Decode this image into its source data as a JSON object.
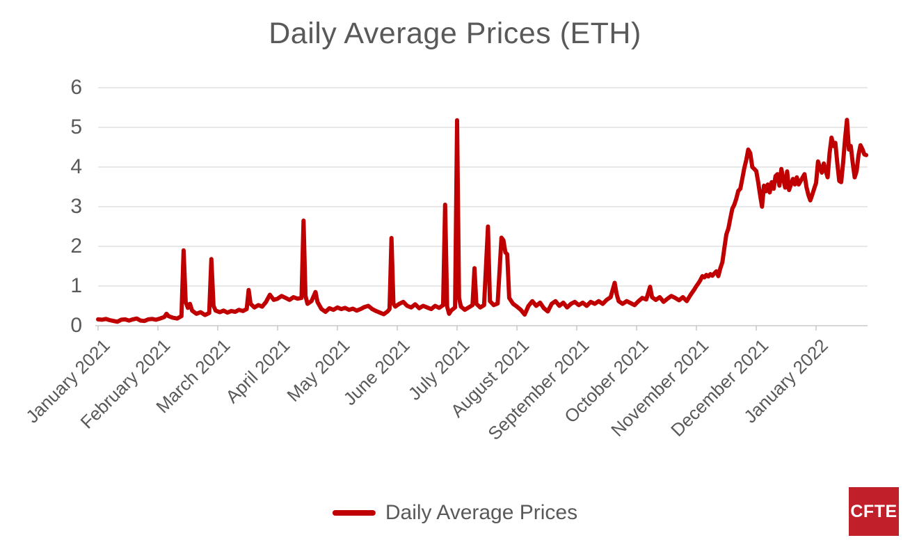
{
  "page": {
    "background": "#ffffff"
  },
  "colors": {
    "line": "#c00000",
    "text": "#595959",
    "gridline": "#d9d9d9",
    "axis_line": "#bfbfbf",
    "logo_background": "#c1202b",
    "logo_text": "#ffffff"
  },
  "logo": {
    "text": "CFTE"
  },
  "legend": {
    "label": "Daily Average Prices"
  },
  "chart_data": {
    "type": "line",
    "title": "Daily Average Prices (ETH)",
    "xlabel": "",
    "ylabel": "",
    "ylim": [
      0,
      6
    ],
    "yticks": [
      0,
      1,
      2,
      3,
      4,
      5,
      6
    ],
    "grid": "horizontal",
    "legend_position": "bottom-center",
    "x_axis_unit": "month",
    "x_tick_labels": [
      "January 2021",
      "February 2021",
      "March 2021",
      "April 2021",
      "May 2021",
      "June 2021",
      "July 2021",
      "August 2021",
      "September 2021",
      "October 2021",
      "November 2021",
      "December 2021",
      "January 2022"
    ],
    "series": [
      {
        "name": "Daily Average Prices",
        "color": "#c00000",
        "points": [
          [
            "2021-01-01",
            0.16
          ],
          [
            "2021-01-03",
            0.15
          ],
          [
            "2021-01-05",
            0.17
          ],
          [
            "2021-01-07",
            0.14
          ],
          [
            "2021-01-09",
            0.12
          ],
          [
            "2021-01-11",
            0.1
          ],
          [
            "2021-01-13",
            0.15
          ],
          [
            "2021-01-15",
            0.16
          ],
          [
            "2021-01-17",
            0.13
          ],
          [
            "2021-01-19",
            0.16
          ],
          [
            "2021-01-21",
            0.18
          ],
          [
            "2021-01-23",
            0.13
          ],
          [
            "2021-01-25",
            0.12
          ],
          [
            "2021-01-27",
            0.16
          ],
          [
            "2021-01-29",
            0.17
          ],
          [
            "2021-01-31",
            0.15
          ],
          [
            "2021-02-02",
            0.18
          ],
          [
            "2021-02-04",
            0.22
          ],
          [
            "2021-02-05",
            0.3
          ],
          [
            "2021-02-06",
            0.24
          ],
          [
            "2021-02-08",
            0.2
          ],
          [
            "2021-02-10",
            0.18
          ],
          [
            "2021-02-12",
            0.24
          ],
          [
            "2021-02-13",
            1.9
          ],
          [
            "2021-02-14",
            0.6
          ],
          [
            "2021-02-15",
            0.45
          ],
          [
            "2021-02-16",
            0.55
          ],
          [
            "2021-02-17",
            0.38
          ],
          [
            "2021-02-19",
            0.3
          ],
          [
            "2021-02-21",
            0.34
          ],
          [
            "2021-02-23",
            0.27
          ],
          [
            "2021-02-25",
            0.32
          ],
          [
            "2021-02-26",
            1.68
          ],
          [
            "2021-02-27",
            0.5
          ],
          [
            "2021-02-28",
            0.38
          ],
          [
            "2021-03-02",
            0.34
          ],
          [
            "2021-03-04",
            0.38
          ],
          [
            "2021-03-06",
            0.33
          ],
          [
            "2021-03-08",
            0.37
          ],
          [
            "2021-03-10",
            0.35
          ],
          [
            "2021-03-12",
            0.4
          ],
          [
            "2021-03-14",
            0.37
          ],
          [
            "2021-03-16",
            0.42
          ],
          [
            "2021-03-17",
            0.9
          ],
          [
            "2021-03-18",
            0.55
          ],
          [
            "2021-03-20",
            0.46
          ],
          [
            "2021-03-22",
            0.52
          ],
          [
            "2021-03-24",
            0.48
          ],
          [
            "2021-03-26",
            0.6
          ],
          [
            "2021-03-28",
            0.78
          ],
          [
            "2021-03-30",
            0.65
          ],
          [
            "2021-04-01",
            0.68
          ],
          [
            "2021-04-03",
            0.75
          ],
          [
            "2021-04-05",
            0.7
          ],
          [
            "2021-04-07",
            0.65
          ],
          [
            "2021-04-09",
            0.72
          ],
          [
            "2021-04-11",
            0.68
          ],
          [
            "2021-04-13",
            0.7
          ],
          [
            "2021-04-14",
            2.65
          ],
          [
            "2021-04-15",
            0.75
          ],
          [
            "2021-04-16",
            0.55
          ],
          [
            "2021-04-18",
            0.62
          ],
          [
            "2021-04-20",
            0.85
          ],
          [
            "2021-04-21",
            0.6
          ],
          [
            "2021-04-23",
            0.42
          ],
          [
            "2021-04-25",
            0.35
          ],
          [
            "2021-04-27",
            0.44
          ],
          [
            "2021-04-29",
            0.4
          ],
          [
            "2021-05-01",
            0.46
          ],
          [
            "2021-05-03",
            0.42
          ],
          [
            "2021-05-05",
            0.45
          ],
          [
            "2021-05-07",
            0.4
          ],
          [
            "2021-05-09",
            0.43
          ],
          [
            "2021-05-11",
            0.38
          ],
          [
            "2021-05-13",
            0.42
          ],
          [
            "2021-05-15",
            0.47
          ],
          [
            "2021-05-17",
            0.5
          ],
          [
            "2021-05-19",
            0.42
          ],
          [
            "2021-05-21",
            0.37
          ],
          [
            "2021-05-23",
            0.33
          ],
          [
            "2021-05-25",
            0.29
          ],
          [
            "2021-05-27",
            0.36
          ],
          [
            "2021-05-28",
            0.42
          ],
          [
            "2021-05-29",
            2.21
          ],
          [
            "2021-05-30",
            0.55
          ],
          [
            "2021-05-31",
            0.48
          ],
          [
            "2021-06-02",
            0.55
          ],
          [
            "2021-06-04",
            0.6
          ],
          [
            "2021-06-06",
            0.5
          ],
          [
            "2021-06-08",
            0.46
          ],
          [
            "2021-06-10",
            0.54
          ],
          [
            "2021-06-12",
            0.44
          ],
          [
            "2021-06-14",
            0.5
          ],
          [
            "2021-06-16",
            0.46
          ],
          [
            "2021-06-18",
            0.42
          ],
          [
            "2021-06-20",
            0.5
          ],
          [
            "2021-06-22",
            0.45
          ],
          [
            "2021-06-24",
            0.52
          ],
          [
            "2021-06-25",
            3.05
          ],
          [
            "2021-06-26",
            0.48
          ],
          [
            "2021-06-27",
            0.3
          ],
          [
            "2021-06-28",
            0.38
          ],
          [
            "2021-06-30",
            0.46
          ],
          [
            "2021-07-01",
            5.18
          ],
          [
            "2021-07-02",
            0.7
          ],
          [
            "2021-07-03",
            0.48
          ],
          [
            "2021-07-05",
            0.4
          ],
          [
            "2021-07-07",
            0.46
          ],
          [
            "2021-07-09",
            0.52
          ],
          [
            "2021-07-10",
            1.45
          ],
          [
            "2021-07-11",
            0.55
          ],
          [
            "2021-07-13",
            0.46
          ],
          [
            "2021-07-15",
            0.52
          ],
          [
            "2021-07-17",
            2.5
          ],
          [
            "2021-07-18",
            0.62
          ],
          [
            "2021-07-20",
            0.52
          ],
          [
            "2021-07-22",
            0.56
          ],
          [
            "2021-07-24",
            2.22
          ],
          [
            "2021-07-25",
            2.15
          ],
          [
            "2021-07-26",
            1.85
          ],
          [
            "2021-07-27",
            1.8
          ],
          [
            "2021-07-28",
            0.7
          ],
          [
            "2021-07-30",
            0.55
          ],
          [
            "2021-08-01",
            0.48
          ],
          [
            "2021-08-03",
            0.4
          ],
          [
            "2021-08-05",
            0.28
          ],
          [
            "2021-08-07",
            0.5
          ],
          [
            "2021-08-09",
            0.62
          ],
          [
            "2021-08-11",
            0.5
          ],
          [
            "2021-08-13",
            0.58
          ],
          [
            "2021-08-15",
            0.44
          ],
          [
            "2021-08-17",
            0.36
          ],
          [
            "2021-08-19",
            0.55
          ],
          [
            "2021-08-21",
            0.62
          ],
          [
            "2021-08-23",
            0.5
          ],
          [
            "2021-08-25",
            0.58
          ],
          [
            "2021-08-27",
            0.46
          ],
          [
            "2021-08-29",
            0.55
          ],
          [
            "2021-08-31",
            0.6
          ],
          [
            "2021-09-02",
            0.52
          ],
          [
            "2021-09-04",
            0.58
          ],
          [
            "2021-09-06",
            0.5
          ],
          [
            "2021-09-08",
            0.6
          ],
          [
            "2021-09-10",
            0.55
          ],
          [
            "2021-09-12",
            0.62
          ],
          [
            "2021-09-14",
            0.55
          ],
          [
            "2021-09-16",
            0.65
          ],
          [
            "2021-09-18",
            0.72
          ],
          [
            "2021-09-20",
            1.08
          ],
          [
            "2021-09-21",
            0.8
          ],
          [
            "2021-09-22",
            0.62
          ],
          [
            "2021-09-24",
            0.55
          ],
          [
            "2021-09-26",
            0.62
          ],
          [
            "2021-09-28",
            0.57
          ],
          [
            "2021-09-30",
            0.52
          ],
          [
            "2021-10-02",
            0.62
          ],
          [
            "2021-10-04",
            0.7
          ],
          [
            "2021-10-06",
            0.66
          ],
          [
            "2021-10-08",
            0.98
          ],
          [
            "2021-10-09",
            0.72
          ],
          [
            "2021-10-11",
            0.65
          ],
          [
            "2021-10-13",
            0.72
          ],
          [
            "2021-10-15",
            0.6
          ],
          [
            "2021-10-17",
            0.68
          ],
          [
            "2021-10-19",
            0.75
          ],
          [
            "2021-10-21",
            0.7
          ],
          [
            "2021-10-23",
            0.64
          ],
          [
            "2021-10-25",
            0.72
          ],
          [
            "2021-10-27",
            0.62
          ],
          [
            "2021-10-28",
            0.7
          ],
          [
            "2021-10-29",
            0.78
          ],
          [
            "2021-10-31",
            0.92
          ],
          [
            "2021-11-01",
            1.0
          ],
          [
            "2021-11-02",
            1.07
          ],
          [
            "2021-11-03",
            1.15
          ],
          [
            "2021-11-04",
            1.25
          ],
          [
            "2021-11-05",
            1.22
          ],
          [
            "2021-11-06",
            1.28
          ],
          [
            "2021-11-07",
            1.24
          ],
          [
            "2021-11-08",
            1.3
          ],
          [
            "2021-11-09",
            1.26
          ],
          [
            "2021-11-10",
            1.32
          ],
          [
            "2021-11-11",
            1.37
          ],
          [
            "2021-11-12",
            1.25
          ],
          [
            "2021-11-13",
            1.45
          ],
          [
            "2021-11-14",
            1.6
          ],
          [
            "2021-11-15",
            1.95
          ],
          [
            "2021-11-16",
            2.3
          ],
          [
            "2021-11-17",
            2.45
          ],
          [
            "2021-11-18",
            2.7
          ],
          [
            "2021-11-19",
            2.95
          ],
          [
            "2021-11-20",
            3.05
          ],
          [
            "2021-11-21",
            3.2
          ],
          [
            "2021-11-22",
            3.4
          ],
          [
            "2021-11-23",
            3.45
          ],
          [
            "2021-11-24",
            3.7
          ],
          [
            "2021-11-25",
            3.97
          ],
          [
            "2021-11-26",
            4.18
          ],
          [
            "2021-11-27",
            4.44
          ],
          [
            "2021-11-28",
            4.35
          ],
          [
            "2021-11-29",
            4.0
          ],
          [
            "2021-11-30",
            3.95
          ],
          [
            "2021-12-01",
            3.9
          ],
          [
            "2021-12-02",
            3.62
          ],
          [
            "2021-12-03",
            3.3
          ],
          [
            "2021-12-04",
            3.0
          ],
          [
            "2021-12-05",
            3.53
          ],
          [
            "2021-12-06",
            3.39
          ],
          [
            "2021-12-07",
            3.56
          ],
          [
            "2021-12-08",
            3.36
          ],
          [
            "2021-12-09",
            3.62
          ],
          [
            "2021-12-10",
            3.45
          ],
          [
            "2021-12-11",
            3.77
          ],
          [
            "2021-12-12",
            3.82
          ],
          [
            "2021-12-13",
            3.53
          ],
          [
            "2021-12-14",
            3.95
          ],
          [
            "2021-12-15",
            3.7
          ],
          [
            "2021-12-16",
            3.48
          ],
          [
            "2021-12-17",
            3.89
          ],
          [
            "2021-12-18",
            3.42
          ],
          [
            "2021-12-19",
            3.56
          ],
          [
            "2021-12-20",
            3.7
          ],
          [
            "2021-12-21",
            3.56
          ],
          [
            "2021-12-22",
            3.74
          ],
          [
            "2021-12-23",
            3.56
          ],
          [
            "2021-12-24",
            3.65
          ],
          [
            "2021-12-26",
            3.82
          ],
          [
            "2021-12-27",
            3.5
          ],
          [
            "2021-12-28",
            3.3
          ],
          [
            "2021-12-29",
            3.16
          ],
          [
            "2021-12-30",
            3.3
          ],
          [
            "2021-12-31",
            3.45
          ],
          [
            "2022-01-01",
            3.6
          ],
          [
            "2022-01-02",
            4.14
          ],
          [
            "2022-01-03",
            4.0
          ],
          [
            "2022-01-04",
            3.86
          ],
          [
            "2022-01-05",
            4.09
          ],
          [
            "2022-01-06",
            3.9
          ],
          [
            "2022-01-07",
            3.74
          ],
          [
            "2022-01-08",
            4.35
          ],
          [
            "2022-01-09",
            4.74
          ],
          [
            "2022-01-10",
            4.53
          ],
          [
            "2022-01-11",
            4.61
          ],
          [
            "2022-01-12",
            4.1
          ],
          [
            "2022-01-13",
            3.65
          ],
          [
            "2022-01-14",
            3.62
          ],
          [
            "2022-01-15",
            4.1
          ],
          [
            "2022-01-16",
            4.7
          ],
          [
            "2022-01-17",
            5.19
          ],
          [
            "2022-01-18",
            4.44
          ],
          [
            "2022-01-19",
            4.53
          ],
          [
            "2022-01-20",
            4.1
          ],
          [
            "2022-01-21",
            3.74
          ],
          [
            "2022-01-22",
            3.9
          ],
          [
            "2022-01-23",
            4.3
          ],
          [
            "2022-01-24",
            4.55
          ],
          [
            "2022-01-25",
            4.45
          ],
          [
            "2022-01-26",
            4.32
          ],
          [
            "2022-01-27",
            4.3
          ]
        ]
      }
    ]
  }
}
